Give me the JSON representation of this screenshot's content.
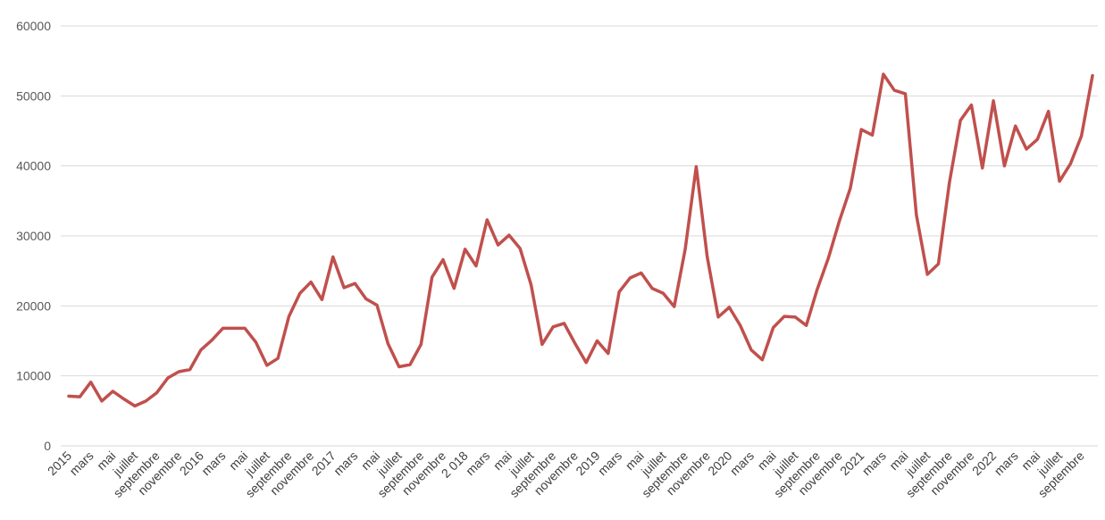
{
  "chart_data": {
    "type": "line",
    "title": "",
    "xlabel": "",
    "ylabel": "",
    "ylim": [
      0,
      60000
    ],
    "yticks": [
      "0",
      "10000",
      "20000",
      "30000",
      "40000",
      "50000",
      "60000"
    ],
    "grid": true,
    "legend": "none",
    "line_color": "#c0504d",
    "x_tick_labels": [
      "2015",
      "mars",
      "mai",
      "juillet",
      "septembre",
      "novembre",
      "2016",
      "mars",
      "mai",
      "juillet",
      "septembre",
      "novembre",
      "2017",
      "mars",
      "mai",
      "juillet",
      "septembre",
      "novembre",
      "2 018",
      "mars",
      "mai",
      "juillet",
      "septembre",
      "novembre",
      "2019",
      "mars",
      "mai",
      "juillet",
      "septembre",
      "novembre",
      "2020",
      "mars",
      "mai",
      "juillet",
      "septembre",
      "novembre",
      "2021",
      "mars",
      "mai",
      "juillet",
      "septembre",
      "novembre",
      "2022",
      "mars",
      "mai",
      "juillet",
      "septembre"
    ],
    "series": [
      {
        "values": [
          7100,
          7000,
          9100,
          6400,
          7800,
          6700,
          5700,
          6400,
          7600,
          9700,
          10600,
          10900,
          13700,
          15100,
          16800,
          16800,
          16800,
          14800,
          11500,
          12500,
          18500,
          21800,
          23400,
          20900,
          27000,
          22600,
          23200,
          21000,
          20100,
          14600,
          11300,
          11600,
          14500,
          24100,
          26600,
          22500,
          28100,
          25700,
          32300,
          28700,
          30100,
          28200,
          23000,
          14500,
          17000,
          17500,
          14600,
          11900,
          15000,
          13200,
          22000,
          24000,
          24700,
          22500,
          21800,
          19900,
          28100,
          39900,
          27000,
          18400,
          19800,
          17200,
          13700,
          12300,
          16900,
          18500,
          18400,
          17200,
          22400,
          26800,
          32100,
          36800,
          45200,
          44400,
          53100,
          50800,
          50300,
          33000,
          24500,
          26000,
          37600,
          46500,
          48700,
          39700,
          49300,
          40000,
          45700,
          42400,
          43800,
          47800,
          37800,
          40300,
          44300,
          52900
        ]
      }
    ]
  }
}
